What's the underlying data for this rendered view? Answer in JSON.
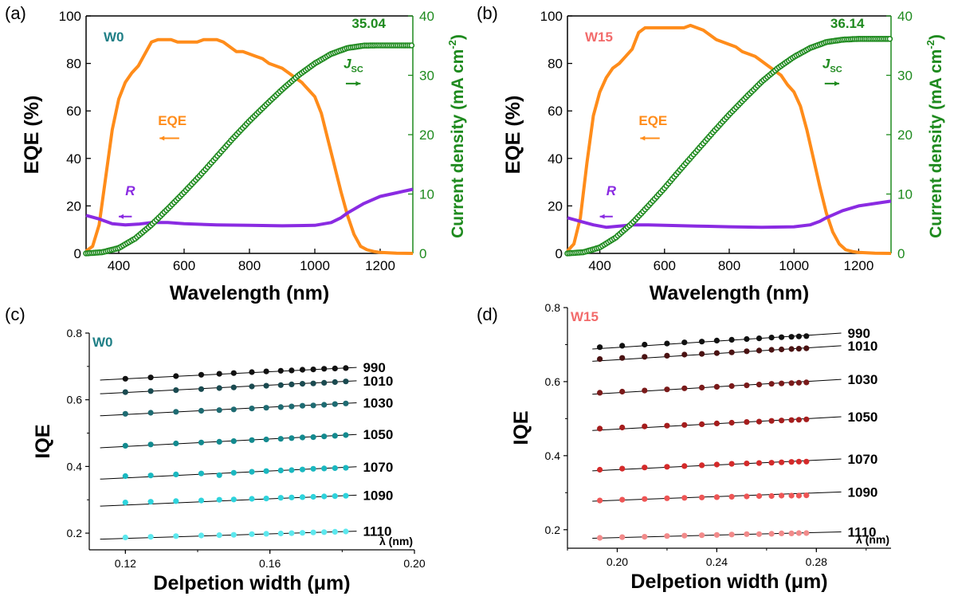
{
  "chart_data": [
    {
      "panel": "(a)",
      "type": "line",
      "sample": "W0",
      "sample_color": "#1f7f86",
      "xlabel": "Wavelength (nm)",
      "ylabel": "EQE (%)",
      "y2label": "Current density (mA cm",
      "y2label_sup": "-2",
      "xlim": [
        300,
        1300
      ],
      "ylim": [
        0,
        100
      ],
      "y2lim": [
        0,
        40
      ],
      "xticks": [
        400,
        600,
        800,
        1000,
        1200
      ],
      "yticks": [
        0,
        20,
        40,
        60,
        80,
        100
      ],
      "y2ticks": [
        0,
        10,
        20,
        30,
        40
      ],
      "series": [
        {
          "name": "EQE",
          "axis": "left",
          "color": "#ff8c1a",
          "x": [
            300,
            320,
            340,
            360,
            380,
            400,
            420,
            440,
            460,
            480,
            500,
            520,
            540,
            560,
            580,
            600,
            620,
            640,
            660,
            680,
            700,
            720,
            740,
            760,
            780,
            800,
            820,
            840,
            860,
            880,
            900,
            920,
            940,
            960,
            980,
            1000,
            1020,
            1040,
            1060,
            1080,
            1100,
            1120,
            1140,
            1160,
            1180,
            1200,
            1250,
            1300
          ],
          "y": [
            1,
            3,
            12,
            32,
            52,
            65,
            72,
            76,
            79,
            84,
            89,
            90,
            90,
            90,
            89,
            89,
            89,
            89,
            90,
            90,
            90,
            89,
            87,
            85,
            85,
            84,
            83,
            82,
            80,
            79,
            78,
            76,
            74,
            72,
            69,
            66,
            59,
            48,
            37,
            26,
            16,
            8,
            3,
            1.5,
            0.8,
            0.4,
            0.1,
            0
          ]
        },
        {
          "name": "R",
          "axis": "left",
          "color": "#8a2be2",
          "x": [
            300,
            340,
            380,
            420,
            460,
            500,
            550,
            600,
            700,
            800,
            900,
            1000,
            1050,
            1080,
            1100,
            1150,
            1200,
            1250,
            1300
          ],
          "y": [
            16,
            14.5,
            12.5,
            12,
            12.3,
            13,
            13,
            12.5,
            12,
            11.8,
            11.6,
            11.8,
            13,
            15,
            17,
            21,
            24,
            25.5,
            27
          ]
        },
        {
          "name": "Jsc",
          "axis": "right",
          "color": "#1e8a1e",
          "x": [
            300,
            350,
            400,
            450,
            500,
            550,
            600,
            650,
            700,
            750,
            800,
            850,
            900,
            950,
            1000,
            1050,
            1100,
            1150,
            1200,
            1250,
            1300
          ],
          "y": [
            0,
            0.2,
            0.9,
            2.5,
            4.8,
            7.5,
            10.3,
            13.2,
            16.3,
            19.4,
            22.3,
            25.0,
            27.6,
            30.0,
            32.0,
            33.6,
            34.6,
            35.0,
            35.04,
            35.04,
            35.04
          ]
        }
      ],
      "annotations": {
        "eqe": "EQE",
        "r": "R",
        "jsc_j": "J",
        "jsc_sub": "SC",
        "jsc_value": "35.04"
      }
    },
    {
      "panel": "(b)",
      "type": "line",
      "sample": "W15",
      "sample_color": "#f26b6b",
      "xlabel": "Wavelength (nm)",
      "ylabel": "EQE (%)",
      "y2label": "Current density (mA cm",
      "y2label_sup": "-2",
      "xlim": [
        300,
        1300
      ],
      "ylim": [
        0,
        100
      ],
      "y2lim": [
        0,
        40
      ],
      "xticks": [
        400,
        600,
        800,
        1000,
        1200
      ],
      "yticks": [
        0,
        20,
        40,
        60,
        80,
        100
      ],
      "y2ticks": [
        0,
        10,
        20,
        30,
        40
      ],
      "series": [
        {
          "name": "EQE",
          "axis": "left",
          "color": "#ff8c1a",
          "x": [
            300,
            320,
            340,
            360,
            380,
            400,
            420,
            440,
            460,
            480,
            500,
            520,
            540,
            560,
            580,
            600,
            620,
            640,
            660,
            680,
            700,
            720,
            740,
            760,
            780,
            800,
            820,
            840,
            860,
            880,
            900,
            920,
            940,
            960,
            980,
            1000,
            1020,
            1040,
            1060,
            1080,
            1100,
            1120,
            1140,
            1160,
            1180,
            1200,
            1250,
            1300
          ],
          "y": [
            1,
            4,
            15,
            38,
            58,
            68,
            74,
            78,
            80,
            83,
            86,
            93,
            95,
            95,
            95,
            95,
            95,
            95,
            95,
            96,
            95,
            94,
            92,
            90,
            89,
            88,
            87,
            85,
            84,
            83,
            81,
            79,
            77,
            75,
            71,
            68,
            62,
            52,
            40,
            28,
            17,
            9,
            4,
            1.5,
            0.8,
            0.4,
            0.1,
            0
          ]
        },
        {
          "name": "R",
          "axis": "left",
          "color": "#8a2be2",
          "x": [
            300,
            340,
            380,
            420,
            460,
            500,
            550,
            600,
            700,
            800,
            900,
            1000,
            1050,
            1080,
            1100,
            1150,
            1200,
            1250,
            1300
          ],
          "y": [
            15,
            13.5,
            12,
            11,
            11.5,
            12,
            12,
            11.8,
            11.5,
            11.2,
            11,
            11.2,
            12,
            13.5,
            15,
            18,
            20,
            21,
            22
          ]
        },
        {
          "name": "Jsc",
          "axis": "right",
          "color": "#1e8a1e",
          "x": [
            300,
            350,
            400,
            450,
            500,
            550,
            600,
            650,
            700,
            750,
            800,
            850,
            900,
            950,
            1000,
            1050,
            1100,
            1150,
            1200,
            1250,
            1300
          ],
          "y": [
            0,
            0.2,
            1.0,
            2.7,
            5.1,
            8.0,
            11.0,
            14.2,
            17.3,
            20.4,
            23.4,
            26.2,
            28.9,
            31.2,
            33.1,
            34.6,
            35.6,
            36.0,
            36.14,
            36.14,
            36.14
          ]
        }
      ],
      "annotations": {
        "eqe": "EQE",
        "r": "R",
        "jsc_j": "J",
        "jsc_sub": "SC",
        "jsc_value": "36.14"
      }
    },
    {
      "panel": "(c)",
      "type": "scatter",
      "sample": "W0",
      "sample_color": "#1f7f86",
      "xlabel": "Delpetion width (μm)",
      "ylabel": "IQE",
      "legend_title": "λ (nm)",
      "xlim": [
        0.11,
        0.2
      ],
      "ylim": [
        0.15,
        0.8
      ],
      "xticks": [
        0.12,
        0.16,
        0.2
      ],
      "xtick_labels": [
        "0.12",
        "0.16",
        "0.20"
      ],
      "yticks": [
        0.2,
        0.4,
        0.6,
        0.8
      ],
      "ytick_labels": [
        "0.2",
        "0.4",
        "0.6",
        "0.8"
      ],
      "x": [
        0.12,
        0.127,
        0.134,
        0.141,
        0.146,
        0.15,
        0.155,
        0.159,
        0.163,
        0.166,
        0.169,
        0.172,
        0.175,
        0.178,
        0.181
      ],
      "fit_x": [
        0.113,
        0.184
      ],
      "series": [
        {
          "name": "990",
          "color": "#111111",
          "values": [
            0.663,
            0.667,
            0.671,
            0.675,
            0.678,
            0.68,
            0.683,
            0.685,
            0.687,
            0.688,
            0.69,
            0.691,
            0.693,
            0.694,
            0.695
          ],
          "fit": [
            0.659,
            0.697
          ]
        },
        {
          "name": "1010",
          "color": "#1a4a50",
          "values": [
            0.623,
            0.626,
            0.629,
            0.632,
            0.635,
            0.637,
            0.64,
            0.642,
            0.644,
            0.646,
            0.648,
            0.649,
            0.651,
            0.653,
            0.655
          ],
          "fit": [
            0.618,
            0.657
          ]
        },
        {
          "name": "1030",
          "color": "#1e6b72",
          "values": [
            0.558,
            0.561,
            0.564,
            0.567,
            0.569,
            0.571,
            0.574,
            0.576,
            0.578,
            0.58,
            0.582,
            0.583,
            0.585,
            0.587,
            0.589
          ],
          "fit": [
            0.552,
            0.591
          ]
        },
        {
          "name": "1050",
          "color": "#138a8f",
          "values": [
            0.462,
            0.466,
            0.469,
            0.472,
            0.474,
            0.476,
            0.479,
            0.481,
            0.483,
            0.485,
            0.487,
            0.488,
            0.49,
            0.492,
            0.494
          ],
          "fit": [
            0.456,
            0.496
          ]
        },
        {
          "name": "1070",
          "color": "#1ab8c0",
          "values": [
            0.371,
            0.373,
            0.376,
            0.379,
            0.374,
            0.381,
            0.384,
            0.386,
            0.388,
            0.389,
            0.391,
            0.393,
            0.394,
            0.395,
            0.396
          ],
          "fit": [
            0.362,
            0.399
          ]
        },
        {
          "name": "1090",
          "color": "#2ed3dc",
          "values": [
            0.292,
            0.294,
            0.296,
            0.298,
            0.3,
            0.301,
            0.303,
            0.304,
            0.306,
            0.307,
            0.308,
            0.309,
            0.31,
            0.311,
            0.312
          ],
          "fit": [
            0.281,
            0.314
          ]
        },
        {
          "name": "1110",
          "color": "#5ce8ee",
          "values": [
            0.187,
            0.189,
            0.191,
            0.193,
            0.194,
            0.195,
            0.197,
            0.198,
            0.199,
            0.2,
            0.201,
            0.202,
            0.203,
            0.204,
            0.205
          ],
          "fit": [
            0.182,
            0.206
          ]
        }
      ]
    },
    {
      "panel": "(d)",
      "type": "scatter",
      "sample": "W15",
      "sample_color": "#f26b6b",
      "xlabel": "Delpetion width (μm)",
      "ylabel": "IQE",
      "legend_title": "λ (nm)",
      "xlim": [
        0.18,
        0.31
      ],
      "ylim": [
        0.15,
        0.8
      ],
      "xticks": [
        0.2,
        0.24,
        0.28
      ],
      "xtick_labels": [
        "0.20",
        "0.24",
        "0.28"
      ],
      "yticks": [
        0.2,
        0.4,
        0.6,
        0.8
      ],
      "ytick_labels": [
        "0.2",
        "0.4",
        "0.6",
        "0.8"
      ],
      "x": [
        0.193,
        0.202,
        0.211,
        0.22,
        0.227,
        0.234,
        0.24,
        0.246,
        0.252,
        0.257,
        0.262,
        0.266,
        0.27,
        0.273,
        0.276
      ],
      "fit_x": [
        0.19,
        0.29
      ],
      "series": [
        {
          "name": "990",
          "color": "#111111",
          "values": [
            0.693,
            0.697,
            0.7,
            0.703,
            0.706,
            0.708,
            0.711,
            0.713,
            0.715,
            0.717,
            0.719,
            0.72,
            0.721,
            0.722,
            0.723
          ],
          "fit": [
            0.688,
            0.731
          ]
        },
        {
          "name": "1010",
          "color": "#4a1212",
          "values": [
            0.661,
            0.664,
            0.667,
            0.67,
            0.673,
            0.675,
            0.677,
            0.679,
            0.682,
            0.684,
            0.686,
            0.687,
            0.688,
            0.689,
            0.69
          ],
          "fit": [
            0.655,
            0.697
          ]
        },
        {
          "name": "1030",
          "color": "#7a1a1a",
          "values": [
            0.57,
            0.573,
            0.576,
            0.579,
            0.582,
            0.584,
            0.586,
            0.588,
            0.59,
            0.592,
            0.594,
            0.595,
            0.596,
            0.597,
            0.598
          ],
          "fit": [
            0.566,
            0.606
          ]
        },
        {
          "name": "1050",
          "color": "#a51d1d",
          "values": [
            0.473,
            0.476,
            0.479,
            0.481,
            0.483,
            0.485,
            0.487,
            0.489,
            0.491,
            0.492,
            0.494,
            0.495,
            0.496,
            0.497,
            0.498
          ],
          "fit": [
            0.468,
            0.505
          ]
        },
        {
          "name": "1070",
          "color": "#d42a2a",
          "values": [
            0.362,
            0.365,
            0.368,
            0.37,
            0.372,
            0.374,
            0.376,
            0.378,
            0.379,
            0.38,
            0.381,
            0.382,
            0.383,
            0.384,
            0.384
          ],
          "fit": [
            0.359,
            0.391
          ]
        },
        {
          "name": "1090",
          "color": "#ee5555",
          "values": [
            0.279,
            0.281,
            0.283,
            0.285,
            0.286,
            0.287,
            0.288,
            0.289,
            0.29,
            0.291,
            0.291,
            0.292,
            0.292,
            0.292,
            0.293
          ],
          "fit": [
            0.277,
            0.302
          ]
        },
        {
          "name": "1110",
          "color": "#f28a8a",
          "values": [
            0.178,
            0.18,
            0.181,
            0.183,
            0.184,
            0.185,
            0.186,
            0.187,
            0.188,
            0.188,
            0.189,
            0.19,
            0.19,
            0.191,
            0.191
          ],
          "fit": [
            0.177,
            0.194
          ]
        }
      ]
    }
  ]
}
